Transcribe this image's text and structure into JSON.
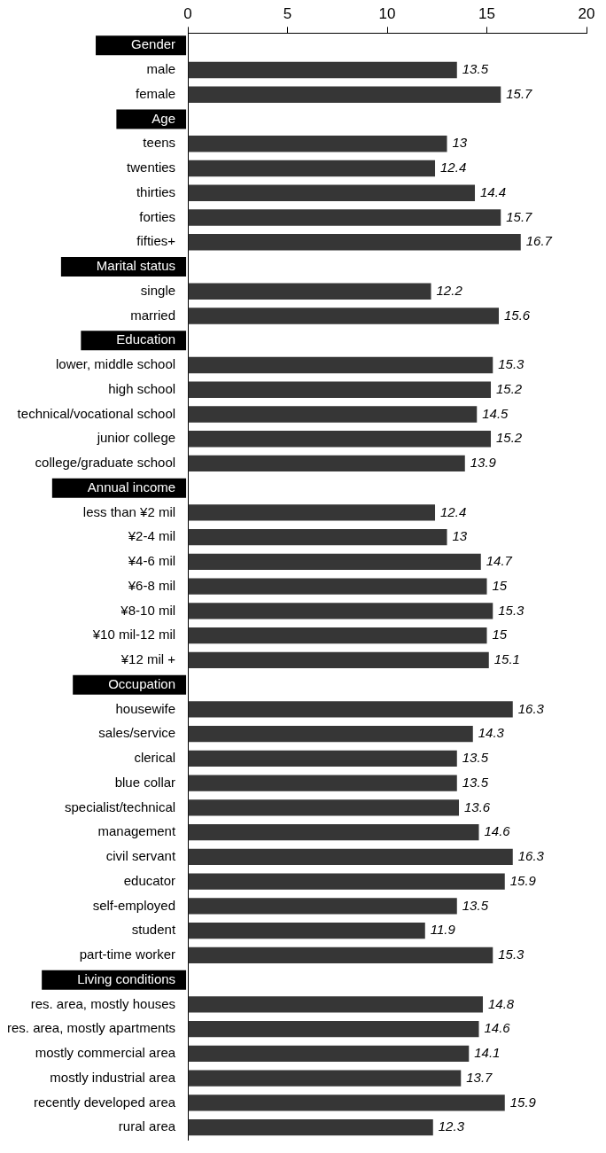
{
  "chart_data": {
    "type": "bar",
    "orientation": "horizontal",
    "categories": [
      "Gender",
      "male",
      "female",
      "Age",
      "teens",
      "twenties",
      "thirties",
      "forties",
      "fifties+",
      "Marital status",
      "single",
      "married",
      "Education",
      "lower, middle school",
      "high school",
      "technical/vocational school",
      "junior college",
      "college/graduate school",
      "Annual income",
      "less than ¥2 mil",
      "¥2-4 mil",
      "¥4-6 mil",
      "¥6-8 mil",
      "¥8-10 mil",
      "¥10 mil-12 mil",
      "¥12 mil +",
      "Occupation",
      "housewife",
      "sales/service",
      "clerical",
      "blue collar",
      "specialist/technical",
      "management",
      "civil servant",
      "educator",
      "self-employed",
      "student",
      "part-time worker",
      "Living conditions",
      "res. area, mostly houses",
      "res. area, mostly apartments",
      "mostly commercial area",
      "mostly industrial area",
      "recently developed area",
      "rural area"
    ],
    "values": [
      null,
      13.5,
      15.7,
      null,
      13,
      12.4,
      14.4,
      15.7,
      16.7,
      null,
      12.2,
      15.6,
      null,
      15.3,
      15.2,
      14.5,
      15.2,
      13.9,
      null,
      12.4,
      13,
      14.7,
      15,
      15.3,
      15,
      15.1,
      null,
      16.3,
      14.3,
      13.5,
      13.5,
      13.6,
      14.6,
      16.3,
      15.9,
      13.5,
      11.9,
      15.3,
      null,
      14.8,
      14.6,
      14.1,
      13.7,
      15.9,
      12.3
    ],
    "color": "#363636",
    "xlim": [
      0,
      20
    ],
    "xticks": [
      0,
      5,
      10,
      15,
      20
    ],
    "grid": false,
    "legend": false,
    "data_labels": true
  }
}
